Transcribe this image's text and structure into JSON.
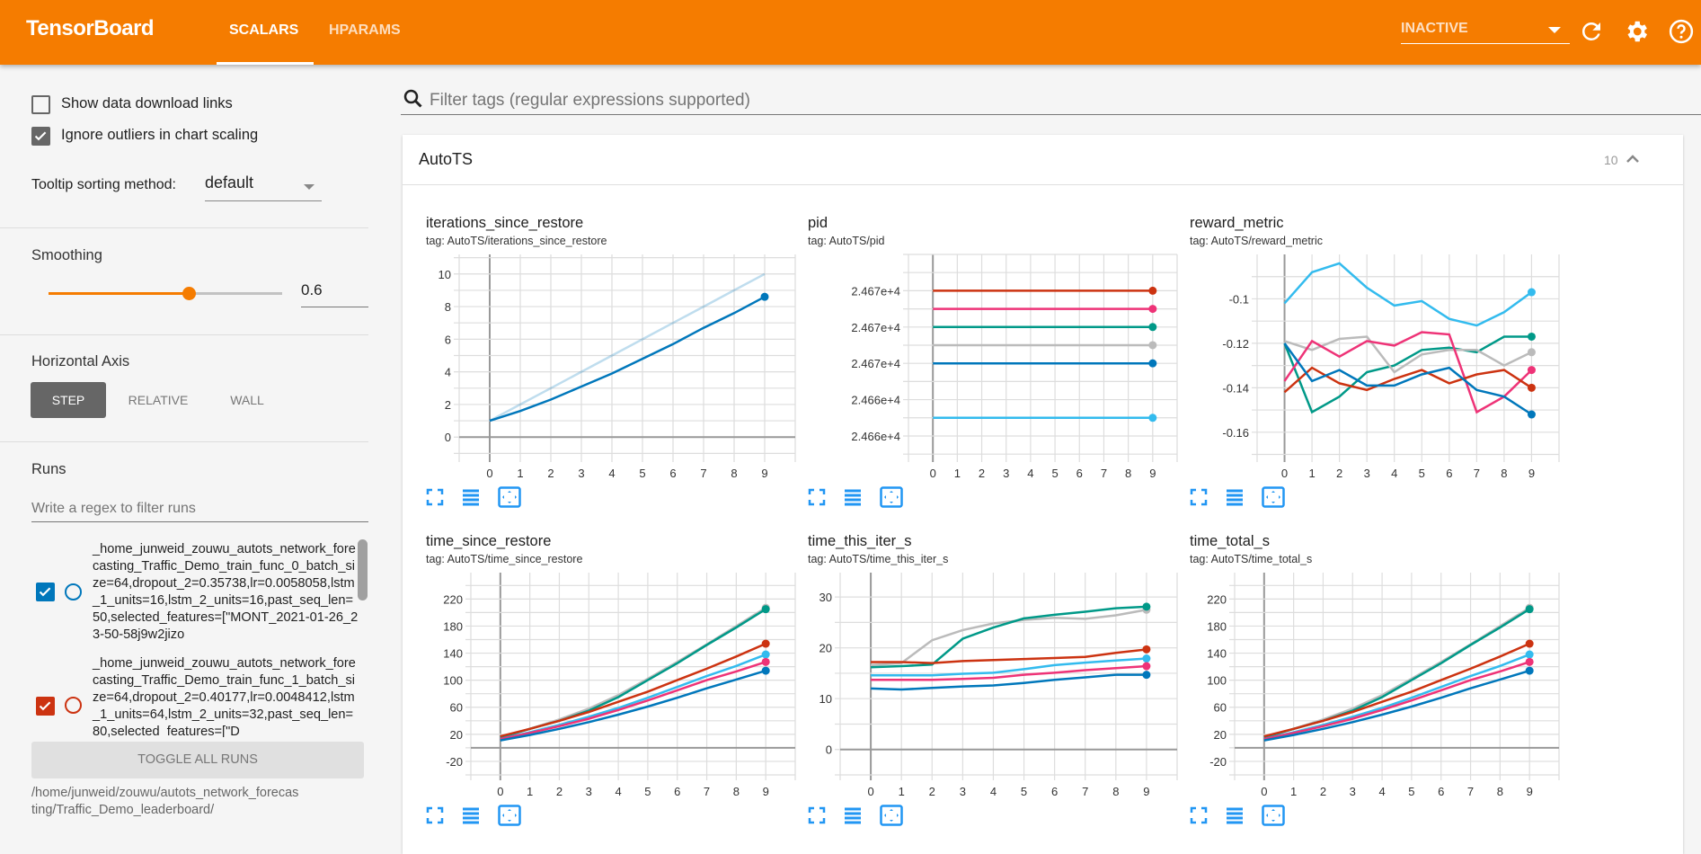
{
  "header": {
    "brand": "TensorBoard",
    "tabs": [
      {
        "label": "SCALARS",
        "active": true
      },
      {
        "label": "HPARAMS",
        "active": false
      }
    ],
    "reload_select": "INACTIVE",
    "icons": [
      "refresh-icon",
      "settings-gear-icon",
      "help-icon"
    ],
    "color": "#f57c00"
  },
  "sidebar": {
    "show_download_links": {
      "label": "Show data download links",
      "checked": false
    },
    "ignore_outliers": {
      "label": "Ignore outliers in chart scaling",
      "checked": true
    },
    "tooltip_sorting": {
      "label": "Tooltip sorting method:",
      "value": "default"
    },
    "smoothing": {
      "label": "Smoothing",
      "value": "0.6",
      "fraction": 0.6
    },
    "horizontal_axis": {
      "label": "Horizontal Axis",
      "options": [
        "STEP",
        "RELATIVE",
        "WALL"
      ],
      "selected": "STEP"
    },
    "runs": {
      "label": "Runs",
      "filter_placeholder": "Write a regex to filter runs",
      "items": [
        {
          "name": "_home_junweid_zouwu_autots_network_forecasting_Traffic_Demo_train_func_0_batch_size=64,dropout_2=0.35738,lr=0.0058058,lstm_1_units=16,lstm_2_units=16,past_seq_len=50,selected_features=[\"MONT_2021-01-26_23-50-58j9w2jizo",
          "checked": true,
          "color": "#0077bb"
        },
        {
          "name": "_home_junweid_zouwu_autots_network_forecasting_Traffic_Demo_train_func_1_batch_size=64,dropout_2=0.40177,lr=0.0048412,lstm_1_units=64,lstm_2_units=32,past_seq_len=80,selected_features=[\"D",
          "checked": true,
          "color": "#cc3311"
        }
      ],
      "toggle_all": "TOGGLE ALL RUNS",
      "logdir": "/home/junweid/zouwu/autots_network_forecasting/Traffic_Demo_leaderboard/"
    }
  },
  "main": {
    "filter_placeholder": "Filter tags (regular expressions supported)",
    "category": {
      "name": "AutoTS",
      "count": "10"
    },
    "run_colors": {
      "blue": "#0077bb",
      "red": "#cc3311",
      "pink": "#ee3377",
      "teal": "#009988",
      "grey": "#bbbbbb",
      "cyan": "#33bbee"
    }
  },
  "chart_data": [
    {
      "type": "line",
      "title": "iterations_since_restore",
      "tag": "tag: AutoTS/iterations_since_restore",
      "x": [
        0,
        1,
        2,
        3,
        4,
        5,
        6,
        7,
        8,
        9
      ],
      "xlim": [
        -1,
        10
      ],
      "ylim": [
        -1.2,
        11.2
      ],
      "yticks": [
        0,
        2,
        4,
        6,
        8,
        10
      ],
      "yticklabels": [
        "0",
        "2",
        "4",
        "6",
        "8",
        "10"
      ],
      "grid": true,
      "raw": [
        {
          "color": "#0077bb",
          "values": [
            1,
            2,
            3,
            4,
            5,
            6,
            7,
            8,
            9,
            10
          ]
        }
      ],
      "series": [
        {
          "color": "#0077bb",
          "values": [
            1,
            1.6,
            2.3,
            3.1,
            3.9,
            4.8,
            5.7,
            6.7,
            7.6,
            8.6
          ]
        }
      ]
    },
    {
      "type": "line",
      "title": "pid",
      "tag": "tag: AutoTS/pid",
      "x": [
        0,
        1,
        2,
        3,
        4,
        5,
        6,
        7,
        8,
        9
      ],
      "xlim": [
        -1,
        10
      ],
      "ylim": [
        24663.43,
        24669
      ],
      "yticks": [
        24664,
        24665,
        24666,
        24667,
        24668
      ],
      "yticklabels": [
        "2.466e+4",
        "2.466e+4",
        "2.467e+4",
        "2.467e+4",
        "2.467e+4"
      ],
      "grid": true,
      "series": [
        {
          "color": "#cc3311",
          "values": [
            24668,
            24668,
            24668,
            24668,
            24668,
            24668,
            24668,
            24668,
            24668,
            24668
          ]
        },
        {
          "color": "#ee3377",
          "values": [
            24667.5,
            24667.5,
            24667.5,
            24667.5,
            24667.5,
            24667.5,
            24667.5,
            24667.5,
            24667.5,
            24667.5
          ]
        },
        {
          "color": "#009988",
          "values": [
            24667,
            24667,
            24667,
            24667,
            24667,
            24667,
            24667,
            24667,
            24667,
            24667
          ]
        },
        {
          "color": "#bbbbbb",
          "values": [
            24666.5,
            24666.5,
            24666.5,
            24666.5,
            24666.5,
            24666.5,
            24666.5,
            24666.5,
            24666.5,
            24666.5
          ]
        },
        {
          "color": "#0077bb",
          "values": [
            24666,
            24666,
            24666,
            24666,
            24666,
            24666,
            24666,
            24666,
            24666,
            24666
          ]
        },
        {
          "color": "#33bbee",
          "values": [
            24664.5,
            24664.5,
            24664.5,
            24664.5,
            24664.5,
            24664.5,
            24664.5,
            24664.5,
            24664.5,
            24664.5
          ]
        }
      ]
    },
    {
      "type": "line",
      "title": "reward_metric",
      "tag": "tag: AutoTS/reward_metric",
      "x": [
        0,
        1,
        2,
        3,
        4,
        5,
        6,
        7,
        8,
        9
      ],
      "xlim": [
        -1,
        10
      ],
      "ylim": [
        -0.171,
        -0.08
      ],
      "yticks": [
        -0.16,
        -0.14,
        -0.12,
        -0.1
      ],
      "yticklabels": [
        "-0.16",
        "-0.14",
        "-0.12",
        "-0.1"
      ],
      "grid": true,
      "series": [
        {
          "color": "#33bbee",
          "values": [
            -0.102,
            -0.088,
            -0.084,
            -0.095,
            -0.103,
            -0.101,
            -0.109,
            -0.112,
            -0.106,
            -0.097
          ]
        },
        {
          "color": "#009988",
          "values": [
            -0.12,
            -0.151,
            -0.144,
            -0.133,
            -0.13,
            -0.123,
            -0.122,
            -0.124,
            -0.117,
            -0.117
          ]
        },
        {
          "color": "#bbbbbb",
          "values": [
            -0.119,
            -0.123,
            -0.118,
            -0.117,
            -0.133,
            -0.125,
            -0.123,
            -0.123,
            -0.13,
            -0.124
          ]
        },
        {
          "color": "#ee3377",
          "values": [
            -0.137,
            -0.119,
            -0.126,
            -0.119,
            -0.121,
            -0.115,
            -0.116,
            -0.151,
            -0.144,
            -0.132
          ]
        },
        {
          "color": "#cc3311",
          "values": [
            -0.142,
            -0.131,
            -0.138,
            -0.141,
            -0.136,
            -0.132,
            -0.138,
            -0.134,
            -0.132,
            -0.14
          ]
        },
        {
          "color": "#0077bb",
          "values": [
            -0.12,
            -0.137,
            -0.132,
            -0.139,
            -0.139,
            -0.134,
            -0.131,
            -0.141,
            -0.144,
            -0.152
          ]
        }
      ]
    },
    {
      "type": "line",
      "title": "time_since_restore",
      "tag": "tag: AutoTS/time_since_restore",
      "x": [
        0,
        1,
        2,
        3,
        4,
        5,
        6,
        7,
        8,
        9
      ],
      "xlim": [
        -1,
        10
      ],
      "ylim": [
        -40,
        259
      ],
      "yticks": [
        -20,
        20,
        60,
        100,
        140,
        180,
        220
      ],
      "yticklabels": [
        "-20",
        "20",
        "60",
        "100",
        "140",
        "180",
        "220"
      ],
      "grid": true,
      "series": [
        {
          "color": "#bbbbbb",
          "values": [
            15,
            28,
            42,
            58,
            78,
            102,
            127,
            153,
            180,
            207
          ]
        },
        {
          "color": "#009988",
          "values": [
            15,
            28,
            40,
            55,
            75,
            100,
            125,
            152,
            178,
            205
          ]
        },
        {
          "color": "#cc3311",
          "values": [
            17,
            28,
            40,
            53,
            68,
            83,
            100,
            117,
            135,
            154
          ]
        },
        {
          "color": "#33bbee",
          "values": [
            13,
            23,
            34,
            46,
            59,
            74,
            90,
            106,
            121,
            138
          ]
        },
        {
          "color": "#ee3377",
          "values": [
            13,
            22,
            32,
            43,
            56,
            70,
            85,
            100,
            113,
            127
          ]
        },
        {
          "color": "#0077bb",
          "values": [
            11,
            19,
            28,
            38,
            49,
            61,
            74,
            88,
            101,
            114
          ]
        }
      ]
    },
    {
      "type": "line",
      "title": "time_this_iter_s",
      "tag": "tag: AutoTS/time_this_iter_s",
      "x": [
        0,
        1,
        2,
        3,
        4,
        5,
        6,
        7,
        8,
        9
      ],
      "xlim": [
        -1,
        10
      ],
      "ylim": [
        -5,
        34.8
      ],
      "yticks": [
        0,
        10,
        20,
        30
      ],
      "yticklabels": [
        "0",
        "10",
        "20",
        "30"
      ],
      "grid": true,
      "series": [
        {
          "color": "#bbbbbb",
          "values": [
            16.6,
            17,
            21.5,
            23.5,
            24.8,
            25.5,
            25.9,
            25.7,
            26.4,
            27.5
          ]
        },
        {
          "color": "#009988",
          "values": [
            16.2,
            16.4,
            16.7,
            21.8,
            24,
            25.8,
            26.5,
            27.1,
            27.8,
            28.1
          ]
        },
        {
          "color": "#cc3311",
          "values": [
            17.2,
            17.2,
            17,
            17.4,
            17.6,
            17.8,
            18,
            18.2,
            19,
            19.7
          ]
        },
        {
          "color": "#33bbee",
          "values": [
            14.6,
            14.6,
            14.6,
            14.9,
            15.1,
            15.8,
            16.6,
            17.1,
            17.5,
            17.9
          ]
        },
        {
          "color": "#ee3377",
          "values": [
            13.7,
            13.7,
            13.7,
            13.9,
            14.1,
            14.7,
            15.1,
            15.6,
            16,
            16.4
          ]
        },
        {
          "color": "#0077bb",
          "values": [
            12,
            11.8,
            12.1,
            12.4,
            12.6,
            13.1,
            13.7,
            14.2,
            14.7,
            14.7
          ]
        }
      ]
    },
    {
      "type": "line",
      "title": "time_total_s",
      "tag": "tag: AutoTS/time_total_s",
      "x": [
        0,
        1,
        2,
        3,
        4,
        5,
        6,
        7,
        8,
        9
      ],
      "xlim": [
        -1,
        10
      ],
      "ylim": [
        -40,
        259
      ],
      "yticks": [
        -20,
        20,
        60,
        100,
        140,
        180,
        220
      ],
      "yticklabels": [
        "-20",
        "20",
        "60",
        "100",
        "140",
        "180",
        "220"
      ],
      "grid": true,
      "series": [
        {
          "color": "#bbbbbb",
          "values": [
            15,
            28,
            42,
            58,
            78,
            102,
            127,
            153,
            180,
            207
          ]
        },
        {
          "color": "#009988",
          "values": [
            15,
            28,
            40,
            55,
            75,
            100,
            125,
            152,
            178,
            205
          ]
        },
        {
          "color": "#cc3311",
          "values": [
            17,
            28,
            40,
            53,
            68,
            83,
            100,
            117,
            135,
            154
          ]
        },
        {
          "color": "#33bbee",
          "values": [
            13,
            23,
            34,
            46,
            59,
            74,
            90,
            106,
            121,
            138
          ]
        },
        {
          "color": "#ee3377",
          "values": [
            13,
            22,
            32,
            43,
            56,
            70,
            85,
            100,
            113,
            127
          ]
        },
        {
          "color": "#0077bb",
          "values": [
            11,
            19,
            28,
            38,
            49,
            61,
            74,
            88,
            101,
            114
          ]
        }
      ]
    }
  ]
}
